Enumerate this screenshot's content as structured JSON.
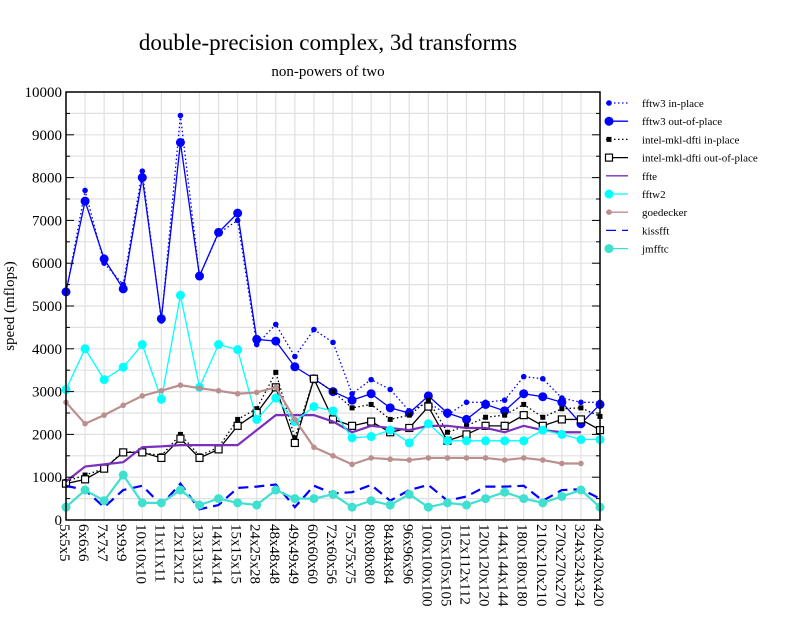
{
  "chart_data": {
    "type": "line",
    "title": "double-precision complex, 3d transforms",
    "subtitle": "non-powers of two",
    "xlabel": "",
    "ylabel": "speed (mflops)",
    "ylim": [
      0,
      10000
    ],
    "yticks": [
      "0",
      "1000",
      "2000",
      "3000",
      "4000",
      "5000",
      "6000",
      "7000",
      "8000",
      "9000",
      "10000"
    ],
    "grid": true,
    "legend_position": "right",
    "categories": [
      "5x5x5",
      "6x6x6",
      "7x7x7",
      "9x9x9",
      "10x10x10",
      "11x11x11",
      "12x12x12",
      "13x13x13",
      "14x14x14",
      "15x15x15",
      "24x25x28",
      "48x48x48",
      "49x49x49",
      "60x60x60",
      "72x60x56",
      "75x75x75",
      "80x80x80",
      "84x84x84",
      "96x96x96",
      "100x100x100",
      "105x105x105",
      "112x112x112",
      "120x120x120",
      "144x144x144",
      "180x180x180",
      "210x210x210",
      "270x270x270",
      "324x324x324",
      "420x420x420"
    ],
    "series": [
      {
        "name": "fftw3 in-place",
        "color": "#0000ff",
        "dash": "dotted",
        "marker": "small-circle",
        "values": [
          5300,
          7700,
          6000,
          5500,
          8150,
          4650,
          9450,
          5700,
          6700,
          7000,
          4100,
          4570,
          3820,
          4450,
          4150,
          2950,
          3280,
          3050,
          2550,
          2750,
          2450,
          2750,
          2750,
          2800,
          3350,
          3300,
          2850,
          2750,
          2750
        ]
      },
      {
        "name": "fftw3 out-of-place",
        "color": "#0000ff",
        "dash": "solid",
        "marker": "circle",
        "values": [
          5330,
          7450,
          6100,
          5400,
          8000,
          4700,
          8820,
          5700,
          6720,
          7170,
          4220,
          4180,
          3580,
          3300,
          3000,
          2800,
          2950,
          2620,
          2500,
          2900,
          2500,
          2350,
          2700,
          2550,
          2950,
          2880,
          2750,
          2250,
          2700
        ]
      },
      {
        "name": "intel-mkl-dfti in-place",
        "color": "#000000",
        "dash": "dotted",
        "marker": "small-square",
        "values": [
          900,
          1050,
          1200,
          1600,
          1580,
          1500,
          2000,
          1500,
          1700,
          2350,
          2600,
          3450,
          1920,
          3300,
          3000,
          2620,
          2700,
          2350,
          2450,
          2800,
          2050,
          2200,
          2400,
          2450,
          2700,
          2400,
          2600,
          2620,
          2420
        ]
      },
      {
        "name": "intel-mkl-dfti out-of-place",
        "color": "#000000",
        "dash": "solid",
        "marker": "open-square",
        "values": [
          850,
          950,
          1200,
          1580,
          1580,
          1450,
          1900,
          1450,
          1650,
          2200,
          2500,
          3100,
          1800,
          3300,
          2350,
          2200,
          2300,
          2050,
          2150,
          2650,
          1850,
          2000,
          2200,
          2200,
          2450,
          2200,
          2350,
          2350,
          2100
        ]
      },
      {
        "name": "ffte",
        "color": "#7b2fbe",
        "dash": "solid",
        "marker": "none",
        "values": [
          900,
          1250,
          1300,
          1350,
          1700,
          1720,
          1750,
          1750,
          1750,
          1750,
          2100,
          2450,
          2450,
          2450,
          2300,
          2050,
          2200,
          2150,
          2100,
          2200,
          2200,
          2150,
          2150,
          2050,
          2200,
          2100,
          2050,
          2050,
          null
        ]
      },
      {
        "name": "fftw2",
        "color": "#00ffff",
        "dash": "solid",
        "marker": "circle",
        "values": [
          3050,
          4000,
          3280,
          3570,
          4100,
          2820,
          5250,
          3100,
          4100,
          3980,
          2350,
          2850,
          2300,
          2650,
          2550,
          1920,
          1950,
          2100,
          1800,
          2250,
          1850,
          1850,
          1850,
          1850,
          1850,
          2100,
          2000,
          1880,
          1880
        ]
      },
      {
        "name": "goedecker",
        "color": "#bc8f8f",
        "dash": "solid",
        "marker": "small-circle",
        "values": [
          2750,
          2250,
          2450,
          2680,
          2900,
          3020,
          3150,
          3080,
          3020,
          2950,
          2980,
          3100,
          2350,
          1700,
          1500,
          1300,
          1450,
          1420,
          1400,
          1450,
          1450,
          1450,
          1450,
          1400,
          1450,
          1400,
          1320,
          1320,
          null
        ]
      },
      {
        "name": "kissfft",
        "color": "#0000ff",
        "dash": "dashed",
        "marker": "none",
        "values": [
          800,
          700,
          300,
          700,
          800,
          350,
          850,
          250,
          350,
          750,
          780,
          830,
          300,
          800,
          620,
          650,
          820,
          450,
          700,
          820,
          450,
          550,
          780,
          780,
          800,
          450,
          700,
          720,
          500
        ]
      },
      {
        "name": "jmfftc",
        "color": "#40e0d0",
        "dash": "solid",
        "marker": "circle",
        "values": [
          300,
          700,
          450,
          1050,
          400,
          400,
          700,
          350,
          500,
          400,
          350,
          700,
          500,
          500,
          600,
          300,
          450,
          350,
          600,
          300,
          400,
          350,
          500,
          650,
          500,
          400,
          550,
          700,
          300
        ]
      }
    ]
  }
}
